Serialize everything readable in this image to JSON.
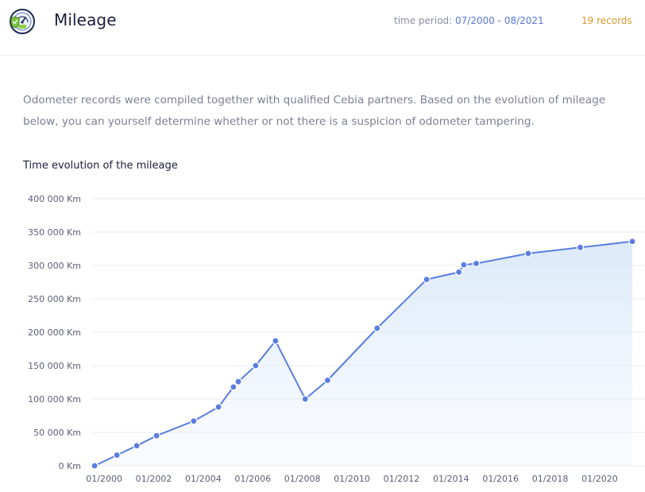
{
  "header": {
    "title": "Mileage",
    "period_label": "time period: ",
    "period_value": "07/2000 - 08/2021",
    "records": "19 records",
    "logo_icon": "odometer-shield-icon"
  },
  "description": "Odometer records were compiled together with qualified Cebia partners. Based on the evolution of mileage below, you can yourself determine whether or not there is a suspicion of odometer tampering.",
  "chart_data": {
    "type": "area",
    "title": "Time evolution of the mileage",
    "xlabel": "",
    "ylabel": "",
    "x_range": [
      1999.9,
      2021.7
    ],
    "ylim": [
      0,
      400000
    ],
    "y_ticks": [
      0,
      50000,
      100000,
      150000,
      200000,
      250000,
      300000,
      350000,
      400000
    ],
    "y_tick_labels": [
      "0 Km",
      "50 000 Km",
      "100 000 Km",
      "150 000 Km",
      "200 000 Km",
      "250 000 Km",
      "300 000 Km",
      "350 000 Km",
      "400 000 Km"
    ],
    "x_ticks": [
      2000,
      2002,
      2004,
      2006,
      2008,
      2010,
      2012,
      2014,
      2016,
      2018,
      2020
    ],
    "x_tick_labels": [
      "01/2000",
      "01/2002",
      "01/2004",
      "01/2006",
      "01/2008",
      "01/2010",
      "01/2012",
      "01/2014",
      "01/2016",
      "01/2018",
      "01/2020"
    ],
    "grid": true,
    "line_color": "#5a7ee0",
    "series": [
      {
        "x": [
          2000.0,
          2000.9,
          2001.7,
          2002.5,
          2004.0,
          2005.0,
          2005.6,
          2005.8,
          2006.5,
          2007.3,
          2008.5,
          2009.4,
          2011.4,
          2013.4,
          2014.7,
          2014.9,
          2015.4,
          2017.5,
          2019.6,
          2021.7
        ],
        "y": [
          0,
          16000,
          30000,
          45000,
          67000,
          88000,
          118000,
          126000,
          150000,
          187000,
          100000,
          128000,
          206000,
          279000,
          290000,
          301000,
          303000,
          318000,
          327000,
          336000
        ]
      }
    ]
  }
}
